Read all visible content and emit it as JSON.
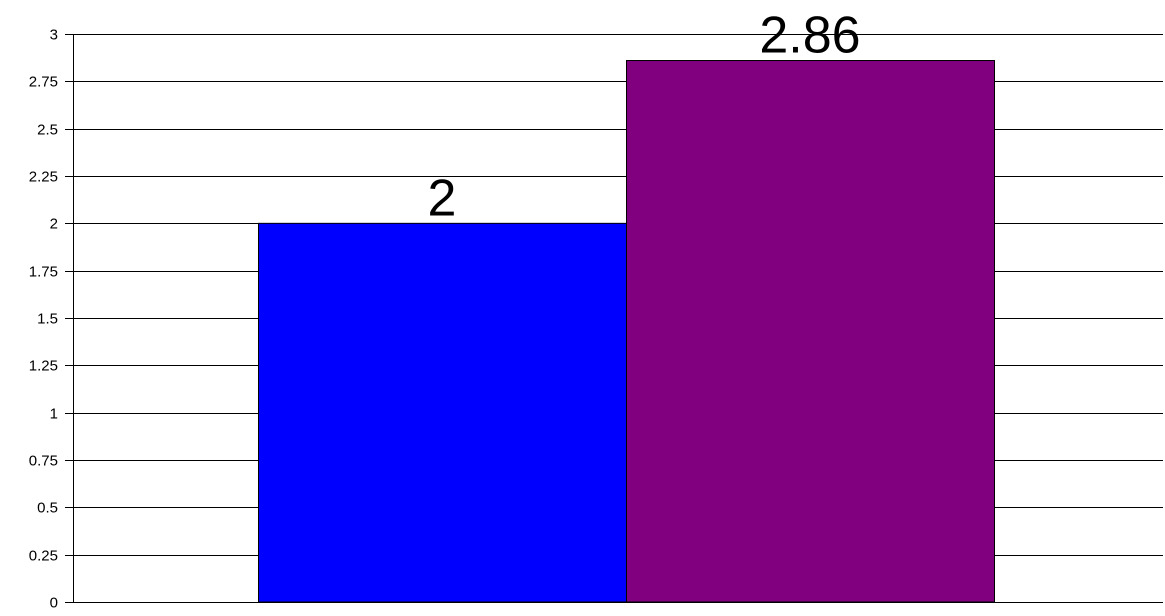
{
  "chart_data": {
    "type": "bar",
    "categories": [
      "",
      ""
    ],
    "values": [
      2,
      2.86
    ],
    "data_labels": [
      "2",
      "2.86"
    ],
    "bar_colors": [
      "#0000ff",
      "#800080"
    ],
    "ylim": [
      0,
      3
    ],
    "ytick_values": [
      0,
      0.25,
      0.5,
      0.75,
      1,
      1.25,
      1.5,
      1.75,
      2,
      2.25,
      2.5,
      2.75,
      3
    ],
    "ytick_labels": [
      "0",
      "0.25",
      "0.5",
      "0.75",
      "1",
      "1.25",
      "1.5",
      "1.75",
      "2",
      "2.25",
      "2.5",
      "2.75",
      "3"
    ],
    "grid": true,
    "legend": "none",
    "title": "",
    "xlabel": "",
    "ylabel": ""
  }
}
